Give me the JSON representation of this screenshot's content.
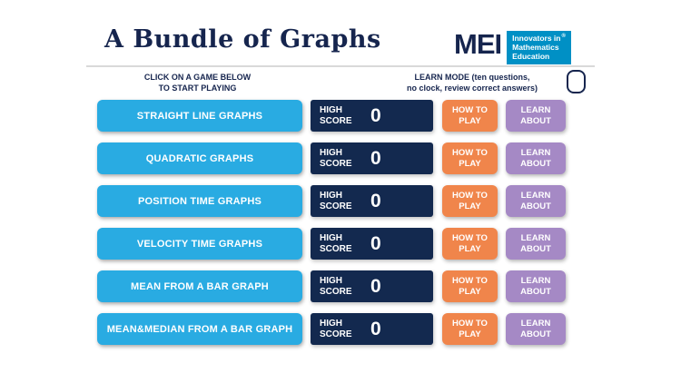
{
  "header": {
    "title": "A Bundle of Graphs",
    "logo": {
      "mei": "MEI",
      "tagline": [
        "Innovators in",
        "Mathematics",
        "Education"
      ],
      "registered": "®"
    }
  },
  "instructions": {
    "click_line1": "CLICK ON A GAME BELOW",
    "click_line2": "TO START PLAYING",
    "learn_line1": "LEARN MODE (ten questions,",
    "learn_line2": "no clock, review correct answers)"
  },
  "labels": {
    "high_score": "HIGH SCORE",
    "how_to_play": "HOW TO PLAY",
    "learn_about": "LEARN ABOUT"
  },
  "rows": [
    {
      "game": "STRAIGHT LINE GRAPHS",
      "score": "0"
    },
    {
      "game": "QUADRATIC GRAPHS",
      "score": "0"
    },
    {
      "game": "POSITION TIME GRAPHS",
      "score": "0"
    },
    {
      "game": "VELOCITY TIME GRAPHS",
      "score": "0"
    },
    {
      "game": "MEAN FROM A BAR GRAPH",
      "score": "0"
    },
    {
      "game": "MEAN&MEDIAN FROM A BAR GRAPH",
      "score": "0"
    }
  ],
  "colors": {
    "navy": "#16254E",
    "cyan": "#29ABE2",
    "orange": "#F0854B",
    "purple": "#A589C5",
    "score_bg": "#13294F",
    "logo_blue": "#0090C5"
  }
}
